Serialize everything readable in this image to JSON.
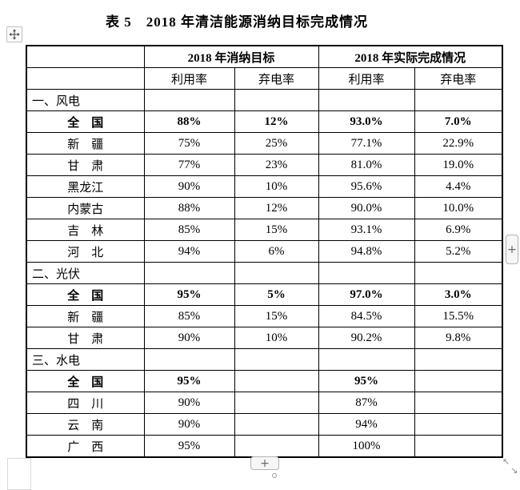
{
  "title": "表 5　2018 年清洁能源消纳目标完成情况",
  "table": {
    "header_groups": [
      "2018 年消纳目标",
      "2018 年实际完成情况"
    ],
    "sub_headers": [
      "利用率",
      "弃电率",
      "利用率",
      "弃电率"
    ],
    "sections": [
      {
        "name": "一、风电",
        "rows": [
          {
            "label": "全　国",
            "bold": true,
            "values": [
              "88%",
              "12%",
              "93.0%",
              "7.0%"
            ]
          },
          {
            "label": "新　疆",
            "bold": false,
            "values": [
              "75%",
              "25%",
              "77.1%",
              "22.9%"
            ]
          },
          {
            "label": "甘　肃",
            "bold": false,
            "values": [
              "77%",
              "23%",
              "81.0%",
              "19.0%"
            ]
          },
          {
            "label": "黑龙江",
            "bold": false,
            "values": [
              "90%",
              "10%",
              "95.6%",
              "4.4%"
            ]
          },
          {
            "label": "内蒙古",
            "bold": false,
            "values": [
              "88%",
              "12%",
              "90.0%",
              "10.0%"
            ]
          },
          {
            "label": "吉　林",
            "bold": false,
            "values": [
              "85%",
              "15%",
              "93.1%",
              "6.9%"
            ]
          },
          {
            "label": "河　北",
            "bold": false,
            "values": [
              "94%",
              "6%",
              "94.8%",
              "5.2%"
            ]
          }
        ]
      },
      {
        "name": "二、光伏",
        "rows": [
          {
            "label": "全　国",
            "bold": true,
            "values": [
              "95%",
              "5%",
              "97.0%",
              "3.0%"
            ]
          },
          {
            "label": "新　疆",
            "bold": false,
            "values": [
              "85%",
              "15%",
              "84.5%",
              "15.5%"
            ]
          },
          {
            "label": "甘　肃",
            "bold": false,
            "values": [
              "90%",
              "10%",
              "90.2%",
              "9.8%"
            ]
          }
        ]
      },
      {
        "name": "三、水电",
        "rows": [
          {
            "label": "全　国",
            "bold": true,
            "values": [
              "95%",
              "",
              "95%",
              ""
            ]
          },
          {
            "label": "四　川",
            "bold": false,
            "values": [
              "90%",
              "",
              "87%",
              ""
            ]
          },
          {
            "label": "云　南",
            "bold": false,
            "values": [
              "90%",
              "",
              "94%",
              ""
            ]
          },
          {
            "label": "广　西",
            "bold": false,
            "values": [
              "95%",
              "",
              "100%",
              ""
            ]
          }
        ]
      }
    ]
  },
  "ui": {
    "right_plus_label": "+",
    "bottom_plus_label": "+",
    "resize_nw_glyph": "↖",
    "resize_se_glyph": "↘",
    "colors": {
      "table_border": "#000000",
      "button_background": "#f6f6f6",
      "button_border": "#b2b2b2",
      "icon_gray": "#666666"
    }
  }
}
